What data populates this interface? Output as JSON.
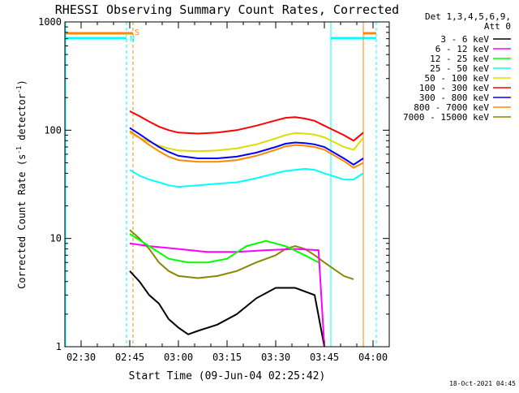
{
  "chart_data": {
    "type": "line",
    "title": "RHESSI Observing Summary Count Rates, Corrected",
    "xlabel": "Start Time (09-Jun-04 02:25:42)",
    "ylabel": "Corrected Count Rate (s",
    "ylabel_sup": "-1",
    "ylabel_mid": " detector",
    "ylabel_sup2": "-1",
    "ylabel_end": ")",
    "yscale": "log",
    "ylim": [
      1,
      1000
    ],
    "xlim": [
      "02:25",
      "04:05"
    ],
    "x_ticks": [
      "02:30",
      "02:45",
      "03:00",
      "03:15",
      "03:30",
      "03:45",
      "04:00"
    ],
    "y_ticks": [
      "1",
      "10",
      "100",
      "1000"
    ],
    "legend_header": [
      "Det 1,3,4,5,6,9,",
      "Att 0"
    ],
    "legend_placement": "right",
    "series": [
      {
        "name": "3 - 6 keV",
        "color": "#000000",
        "x": [
          2.75,
          2.8,
          2.85,
          2.9,
          2.95,
          3.0,
          3.05,
          3.1,
          3.2,
          3.3,
          3.4,
          3.5,
          3.6,
          3.7,
          3.75
        ],
        "values": [
          5,
          4,
          3,
          2.5,
          1.8,
          1.5,
          1.3,
          1.4,
          1.6,
          2,
          2.8,
          3.5,
          3.5,
          3,
          1
        ]
      },
      {
        "name": "6 - 12 keV",
        "color": "#ff00ff",
        "x": [
          2.75,
          2.85,
          3.0,
          3.15,
          3.3,
          3.45,
          3.6,
          3.72,
          3.75
        ],
        "values": [
          9,
          8.5,
          8,
          7.5,
          7.5,
          7.8,
          8,
          7.8,
          1
        ]
      },
      {
        "name": "12 - 25 keV",
        "color": "#00ff00",
        "x": [
          2.75,
          2.85,
          2.95,
          3.05,
          3.15,
          3.25,
          3.35,
          3.45,
          3.55,
          3.65,
          3.72
        ],
        "values": [
          11,
          8.5,
          6.5,
          6,
          6,
          6.5,
          8.5,
          9.5,
          8.5,
          7,
          6
        ]
      },
      {
        "name": "25 - 50 keV",
        "color": "#00ffff",
        "x": [
          2.75,
          2.8,
          2.85,
          2.9,
          2.95,
          3.0,
          3.1,
          3.2,
          3.3,
          3.4,
          3.5,
          3.55,
          3.6,
          3.65,
          3.7,
          3.75,
          3.85,
          3.9,
          3.95
        ],
        "values": [
          43,
          38,
          35,
          33,
          31,
          30,
          31,
          32,
          33,
          36,
          40,
          42,
          43,
          44,
          43,
          40,
          35,
          35,
          40
        ]
      },
      {
        "name": "50 - 100 keV",
        "color": "#dddd00",
        "x": [
          2.75,
          2.8,
          2.85,
          2.9,
          2.95,
          3.0,
          3.1,
          3.2,
          3.3,
          3.4,
          3.5,
          3.55,
          3.6,
          3.65,
          3.7,
          3.75,
          3.85,
          3.9,
          3.95
        ],
        "values": [
          95,
          85,
          78,
          72,
          68,
          65,
          64,
          65,
          68,
          74,
          84,
          90,
          94,
          93,
          91,
          86,
          70,
          66,
          85
        ]
      },
      {
        "name": "100 - 300 keV",
        "color": "#ff0000",
        "x": [
          2.75,
          2.8,
          2.85,
          2.9,
          2.95,
          3.0,
          3.1,
          3.2,
          3.3,
          3.4,
          3.5,
          3.55,
          3.6,
          3.65,
          3.7,
          3.75,
          3.85,
          3.9,
          3.95
        ],
        "values": [
          150,
          135,
          120,
          108,
          100,
          95,
          93,
          95,
          100,
          110,
          123,
          130,
          132,
          128,
          122,
          110,
          90,
          80,
          95
        ]
      },
      {
        "name": "300 - 800 keV",
        "color": "#0000ff",
        "x": [
          2.75,
          2.8,
          2.85,
          2.9,
          2.95,
          3.0,
          3.1,
          3.2,
          3.3,
          3.4,
          3.5,
          3.55,
          3.6,
          3.65,
          3.7,
          3.75,
          3.85,
          3.9,
          3.95
        ],
        "values": [
          105,
          92,
          80,
          70,
          63,
          58,
          55,
          55,
          57,
          62,
          70,
          75,
          77,
          76,
          74,
          70,
          55,
          48,
          55
        ]
      },
      {
        "name": "800 - 7000 keV",
        "color": "#ff8800",
        "x": [
          2.75,
          2.8,
          2.85,
          2.9,
          2.95,
          3.0,
          3.1,
          3.2,
          3.3,
          3.4,
          3.5,
          3.55,
          3.6,
          3.65,
          3.7,
          3.75,
          3.85,
          3.9,
          3.95
        ],
        "values": [
          98,
          85,
          73,
          64,
          57,
          53,
          51,
          51,
          53,
          58,
          66,
          71,
          73,
          72,
          70,
          66,
          52,
          45,
          50
        ]
      },
      {
        "name": "7000 - 15000 keV",
        "color": "#888800",
        "x": [
          2.75,
          2.8,
          2.85,
          2.9,
          2.95,
          3.0,
          3.1,
          3.2,
          3.3,
          3.4,
          3.5,
          3.55,
          3.6,
          3.65,
          3.7,
          3.75,
          3.85,
          3.9
        ],
        "values": [
          12,
          10,
          8,
          6,
          5,
          4.5,
          4.3,
          4.5,
          5,
          6,
          7,
          8,
          8.5,
          8,
          7,
          6,
          4.5,
          4.2
        ]
      }
    ],
    "markers": {
      "s_label": "S",
      "n_label": "N",
      "s_color": "#ff8800",
      "n_color": "#00ffff"
    }
  },
  "footer": {
    "timestamp": "18-Oct-2021 04:45"
  }
}
